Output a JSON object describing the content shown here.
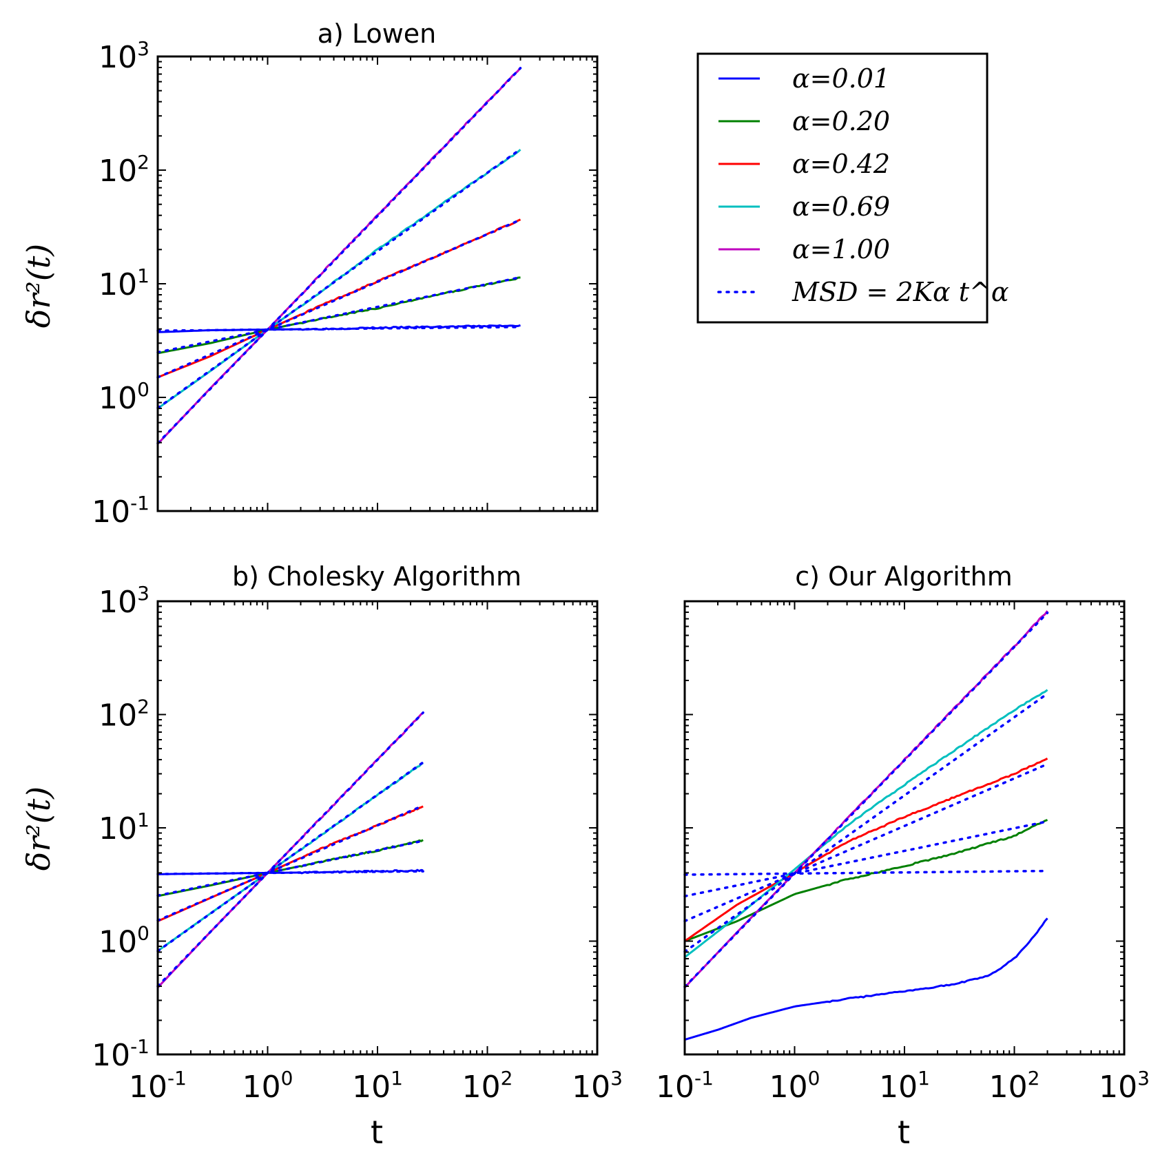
{
  "colors": {
    "alpha_0.01": "#0000ff",
    "alpha_0.20": "#008000",
    "alpha_0.42": "#ff0000",
    "alpha_0.69": "#00bfbf",
    "alpha_1.00": "#bf00bf",
    "fit": "#0000ff"
  },
  "legend": {
    "entries": [
      {
        "label": "α=0.01",
        "color": "#0000ff",
        "style": "solid"
      },
      {
        "label": "α=0.20",
        "color": "#008000",
        "style": "solid"
      },
      {
        "label": "α=0.42",
        "color": "#ff0000",
        "style": "solid"
      },
      {
        "label": "α=0.69",
        "color": "#00bfbf",
        "style": "solid"
      },
      {
        "label": "α=1.00",
        "color": "#bf00bf",
        "style": "solid"
      },
      {
        "label": "MSD = 2Kα t^α",
        "color": "#0000ff",
        "style": "dotted"
      }
    ],
    "placement": "top-right (separate panel)"
  },
  "chart_data": [
    {
      "type": "line",
      "title": "a) Lowen",
      "xlabel": "",
      "ylabel": "δr²(t)",
      "xscale": "log",
      "yscale": "log",
      "xlim": [
        0.1,
        1000
      ],
      "ylim": [
        0.1,
        1000
      ],
      "xticks": [
        "",
        "",
        "",
        "",
        ""
      ],
      "yticks": [
        "10^-1",
        "10^0",
        "10^1",
        "10^2",
        "10^3"
      ],
      "series": [
        {
          "name": "α=0.01",
          "color": "#0000ff",
          "points": [
            [
              0.1,
              3.75
            ],
            [
              0.3,
              3.9
            ],
            [
              1,
              3.95
            ],
            [
              3,
              4.0
            ],
            [
              10,
              4.1
            ],
            [
              50,
              4.2
            ],
            [
              200,
              4.3
            ]
          ]
        },
        {
          "name": "α=0.20",
          "color": "#008000",
          "points": [
            [
              0.1,
              2.45
            ],
            [
              0.3,
              3.0
            ],
            [
              1,
              3.95
            ],
            [
              3,
              4.9
            ],
            [
              10,
              6.1
            ],
            [
              50,
              8.6
            ],
            [
              200,
              11.3
            ]
          ]
        },
        {
          "name": "α=0.42",
          "color": "#ff0000",
          "points": [
            [
              0.1,
              1.5
            ],
            [
              0.3,
              2.3
            ],
            [
              1,
              3.95
            ],
            [
              3,
              6.4
            ],
            [
              10,
              10.5
            ],
            [
              50,
              20.5
            ],
            [
              200,
              36.5
            ]
          ]
        },
        {
          "name": "α=0.69",
          "color": "#00bfbf",
          "points": [
            [
              0.1,
              0.8
            ],
            [
              0.3,
              1.7
            ],
            [
              1,
              3.95
            ],
            [
              3,
              8.4
            ],
            [
              10,
              20
            ],
            [
              50,
              60
            ],
            [
              200,
              150
            ]
          ]
        },
        {
          "name": "α=1.00",
          "color": "#bf00bf",
          "points": [
            [
              0.1,
              0.39
            ],
            [
              0.3,
              1.2
            ],
            [
              1,
              3.95
            ],
            [
              3,
              12
            ],
            [
              10,
              40
            ],
            [
              50,
              200
            ],
            [
              200,
              790
            ]
          ]
        }
      ],
      "fits": [
        {
          "alpha": 0.01,
          "K": 1.975,
          "tmax": 200
        },
        {
          "alpha": 0.2,
          "K": 1.975,
          "tmax": 200
        },
        {
          "alpha": 0.42,
          "K": 1.975,
          "tmax": 200
        },
        {
          "alpha": 0.69,
          "K": 1.975,
          "tmax": 200
        },
        {
          "alpha": 1.0,
          "K": 1.975,
          "tmax": 200
        }
      ]
    },
    {
      "type": "line",
      "title": "b) Cholesky Algorithm",
      "xlabel": "t",
      "ylabel": "δr²(t)",
      "xscale": "log",
      "yscale": "log",
      "xlim": [
        0.1,
        1000
      ],
      "ylim": [
        0.1,
        1000
      ],
      "xticks": [
        "10^-1",
        "10^0",
        "10^1",
        "10^2",
        "10^3"
      ],
      "yticks": [
        "10^-1",
        "10^0",
        "10^1",
        "10^2",
        "10^3"
      ],
      "series": [
        {
          "name": "α=0.01",
          "color": "#0000ff",
          "points": [
            [
              0.1,
              3.9
            ],
            [
              0.3,
              3.95
            ],
            [
              1,
              4.0
            ],
            [
              3,
              4.05
            ],
            [
              10,
              4.15
            ],
            [
              26,
              4.2
            ]
          ]
        },
        {
          "name": "α=0.20",
          "color": "#008000",
          "points": [
            [
              0.1,
              2.5
            ],
            [
              0.3,
              3.1
            ],
            [
              1,
              4.0
            ],
            [
              3,
              5.0
            ],
            [
              10,
              6.3
            ],
            [
              26,
              7.8
            ]
          ]
        },
        {
          "name": "α=0.42",
          "color": "#ff0000",
          "points": [
            [
              0.1,
              1.5
            ],
            [
              0.3,
              2.4
            ],
            [
              1,
              4.0
            ],
            [
              3,
              6.5
            ],
            [
              10,
              10.5
            ],
            [
              26,
              15.5
            ]
          ]
        },
        {
          "name": "α=0.69",
          "color": "#00bfbf",
          "points": [
            [
              0.1,
              0.82
            ],
            [
              0.3,
              1.75
            ],
            [
              1,
              4.0
            ],
            [
              3,
              8.5
            ],
            [
              10,
              19.5
            ],
            [
              26,
              37.5
            ]
          ]
        },
        {
          "name": "α=1.00",
          "color": "#bf00bf",
          "points": [
            [
              0.1,
              0.39
            ],
            [
              0.3,
              1.2
            ],
            [
              1,
              4.0
            ],
            [
              3,
              12
            ],
            [
              10,
              40
            ],
            [
              26,
              104
            ]
          ]
        }
      ],
      "fits": [
        {
          "alpha": 0.01,
          "K": 2.0,
          "tmax": 26
        },
        {
          "alpha": 0.2,
          "K": 2.0,
          "tmax": 26
        },
        {
          "alpha": 0.42,
          "K": 2.0,
          "tmax": 26
        },
        {
          "alpha": 0.69,
          "K": 2.0,
          "tmax": 26
        },
        {
          "alpha": 1.0,
          "K": 2.0,
          "tmax": 26
        }
      ]
    },
    {
      "type": "line",
      "title": "c) Our Algorithm",
      "xlabel": "t",
      "ylabel": "",
      "xscale": "log",
      "yscale": "log",
      "xlim": [
        0.1,
        1000
      ],
      "ylim": [
        0.1,
        1000
      ],
      "xticks": [
        "10^-1",
        "10^0",
        "10^1",
        "10^2",
        "10^3"
      ],
      "yticks": [
        "",
        "",
        "",
        "",
        ""
      ],
      "series": [
        {
          "name": "α=0.01",
          "color": "#0000ff",
          "points": [
            [
              0.1,
              0.135
            ],
            [
              0.2,
              0.165
            ],
            [
              0.4,
              0.21
            ],
            [
              1,
              0.265
            ],
            [
              3,
              0.31
            ],
            [
              10,
              0.36
            ],
            [
              30,
              0.42
            ],
            [
              60,
              0.5
            ],
            [
              100,
              0.7
            ],
            [
              150,
              1.1
            ],
            [
              200,
              1.6
            ]
          ]
        },
        {
          "name": "α=0.20",
          "color": "#008000",
          "points": [
            [
              0.1,
              1.0
            ],
            [
              0.3,
              1.5
            ],
            [
              1,
              2.6
            ],
            [
              3,
              3.5
            ],
            [
              10,
              4.6
            ],
            [
              30,
              6.0
            ],
            [
              100,
              8.5
            ],
            [
              200,
              11.8
            ]
          ]
        },
        {
          "name": "α=0.42",
          "color": "#ff0000",
          "points": [
            [
              0.1,
              1.0
            ],
            [
              0.3,
              2.1
            ],
            [
              1,
              4.0
            ],
            [
              3,
              7.5
            ],
            [
              10,
              12.5
            ],
            [
              30,
              19
            ],
            [
              100,
              30
            ],
            [
              200,
              41
            ]
          ]
        },
        {
          "name": "α=0.69",
          "color": "#00bfbf",
          "points": [
            [
              0.1,
              0.72
            ],
            [
              0.3,
              1.65
            ],
            [
              1,
              4.3
            ],
            [
              3,
              10.5
            ],
            [
              10,
              24
            ],
            [
              30,
              50
            ],
            [
              100,
              110
            ],
            [
              200,
              165
            ]
          ]
        },
        {
          "name": "α=1.00",
          "color": "#bf00bf",
          "points": [
            [
              0.1,
              0.39
            ],
            [
              0.3,
              1.2
            ],
            [
              1,
              4.0
            ],
            [
              3,
              12
            ],
            [
              10,
              40
            ],
            [
              30,
              120
            ],
            [
              100,
              400
            ],
            [
              200,
              820
            ]
          ]
        }
      ],
      "fits": [
        {
          "alpha": 0.01,
          "K": 1.975,
          "tmax": 200
        },
        {
          "alpha": 0.2,
          "K": 1.975,
          "tmax": 200
        },
        {
          "alpha": 0.42,
          "K": 1.975,
          "tmax": 200
        },
        {
          "alpha": 0.69,
          "K": 1.975,
          "tmax": 200
        },
        {
          "alpha": 1.0,
          "K": 1.975,
          "tmax": 200
        }
      ]
    }
  ]
}
